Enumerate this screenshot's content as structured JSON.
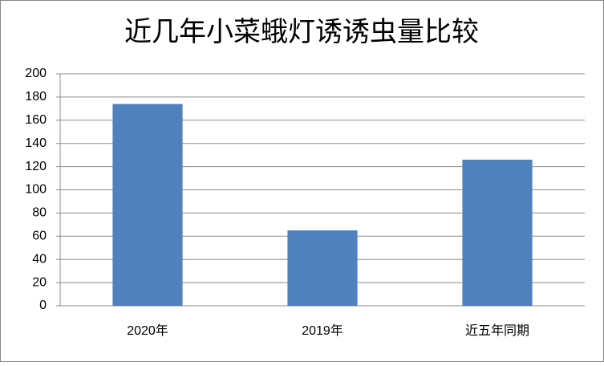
{
  "chart_data": {
    "type": "bar",
    "title": "近几年小菜蛾灯诱诱虫量比较",
    "categories": [
      "2020年",
      "2019年",
      "近五年同期"
    ],
    "values": [
      174,
      65,
      126
    ],
    "color": "#4f81bd",
    "ylim": [
      0,
      200
    ],
    "yticks": [
      0,
      20,
      40,
      60,
      80,
      100,
      120,
      140,
      160,
      180,
      200
    ],
    "grid": true
  }
}
